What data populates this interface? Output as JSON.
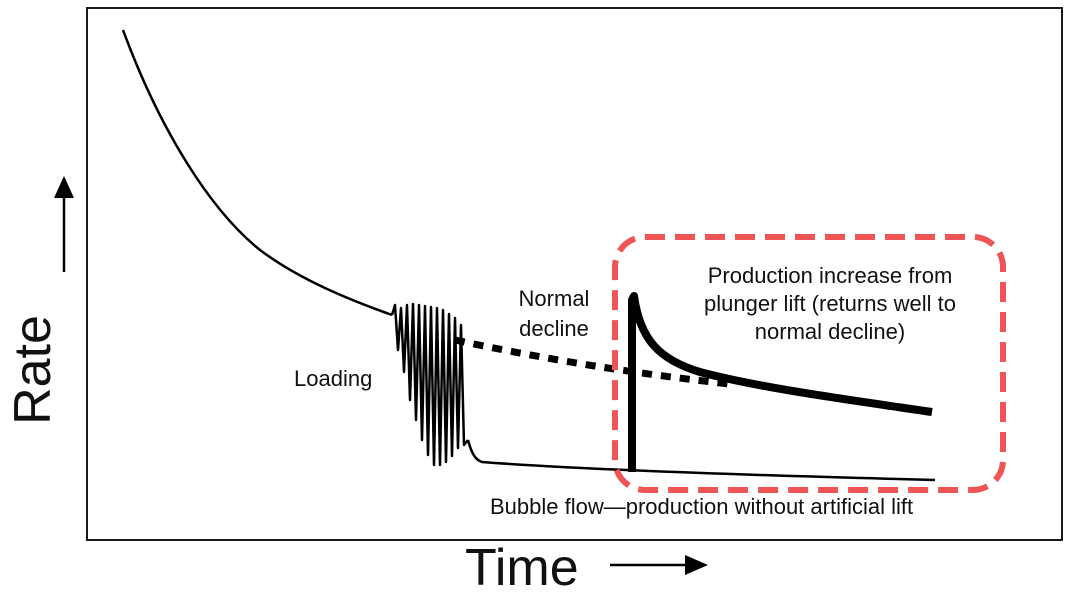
{
  "axes": {
    "x_label": "Time",
    "y_label": "Rate"
  },
  "annotations": {
    "loading": "Loading",
    "normal_decline_line1": "Normal",
    "normal_decline_line2": "decline",
    "production_line1": "Production increase from",
    "production_line2": "plunger lift (returns well to",
    "production_line3": "normal decline)",
    "bubble_flow": "Bubble flow—production without artificial lift"
  },
  "colors": {
    "line": "#000000",
    "frame": "#1a1a1a",
    "highlight_box": "#f05555"
  }
}
